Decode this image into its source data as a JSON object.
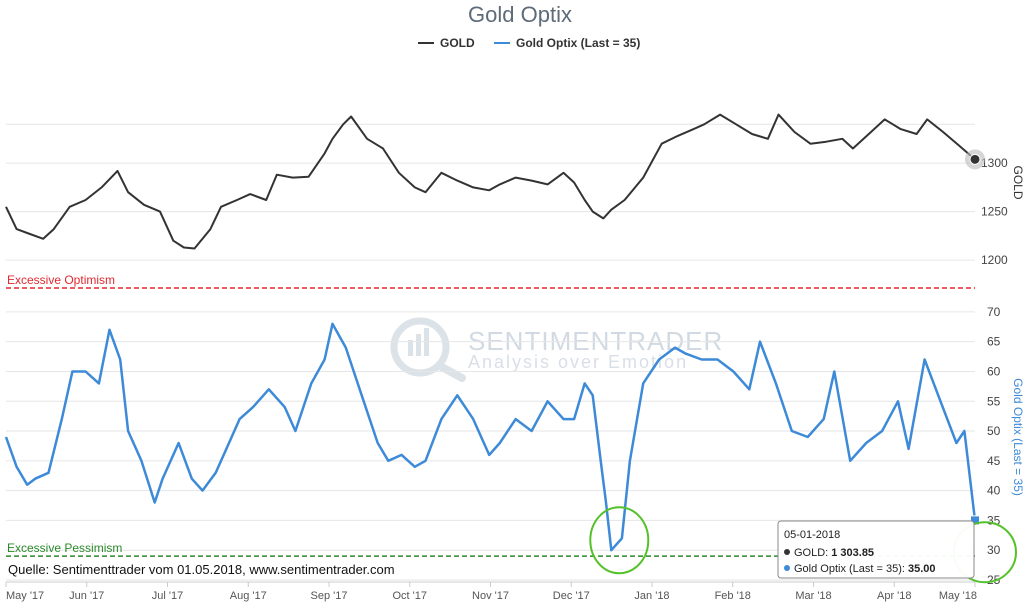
{
  "chart_data": {
    "title": "Gold Optix",
    "x_labels": [
      "May '17",
      "Jun '17",
      "Jul '17",
      "Aug '17",
      "Sep '17",
      "Oct '17",
      "Nov '17",
      "Dec '17",
      "Jan '18",
      "Feb '18",
      "Mar '18",
      "Apr '18",
      "May '18"
    ],
    "legend": [
      {
        "name": "GOLD",
        "color": "#333333"
      },
      {
        "name": "Gold Optix (Last = 35)",
        "color": "#3d8ad8"
      }
    ],
    "panels": [
      {
        "id": "gold",
        "type": "line",
        "ylabel": "GOLD",
        "ylim": [
          1195,
          1365
        ],
        "yticks": [
          1200,
          1250,
          1300
        ],
        "color": "#333333",
        "series": [
          {
            "name": "GOLD",
            "x": [
              "2017-05-01",
              "2017-05-05",
              "2017-05-09",
              "2017-05-15",
              "2017-05-19",
              "2017-05-25",
              "2017-05-31",
              "2017-06-06",
              "2017-06-12",
              "2017-06-16",
              "2017-06-22",
              "2017-06-28",
              "2017-07-03",
              "2017-07-07",
              "2017-07-11",
              "2017-07-17",
              "2017-07-21",
              "2017-07-27",
              "2017-08-01",
              "2017-08-07",
              "2017-08-11",
              "2017-08-17",
              "2017-08-23",
              "2017-08-29",
              "2017-09-01",
              "2017-09-05",
              "2017-09-08",
              "2017-09-14",
              "2017-09-20",
              "2017-09-26",
              "2017-10-02",
              "2017-10-06",
              "2017-10-12",
              "2017-10-18",
              "2017-10-24",
              "2017-10-30",
              "2017-11-03",
              "2017-11-09",
              "2017-11-15",
              "2017-11-21",
              "2017-11-27",
              "2017-12-01",
              "2017-12-05",
              "2017-12-08",
              "2017-12-12",
              "2017-12-15",
              "2017-12-20",
              "2017-12-27",
              "2018-01-03",
              "2018-01-09",
              "2018-01-15",
              "2018-01-19",
              "2018-01-25",
              "2018-01-31",
              "2018-02-06",
              "2018-02-12",
              "2018-02-16",
              "2018-02-22",
              "2018-02-28",
              "2018-03-06",
              "2018-03-12",
              "2018-03-16",
              "2018-03-22",
              "2018-03-28",
              "2018-04-03",
              "2018-04-09",
              "2018-04-13",
              "2018-04-19",
              "2018-04-25",
              "2018-05-01"
            ],
            "y": [
              1255,
              1232,
              1228,
              1222,
              1232,
              1255,
              1262,
              1275,
              1292,
              1270,
              1257,
              1250,
              1220,
              1213,
              1212,
              1232,
              1255,
              1262,
              1268,
              1262,
              1288,
              1285,
              1286,
              1310,
              1325,
              1340,
              1348,
              1325,
              1315,
              1290,
              1275,
              1270,
              1290,
              1282,
              1275,
              1272,
              1278,
              1285,
              1282,
              1278,
              1290,
              1280,
              1262,
              1250,
              1243,
              1252,
              1262,
              1285,
              1320,
              1328,
              1335,
              1340,
              1350,
              1340,
              1330,
              1325,
              1350,
              1332,
              1320,
              1322,
              1325,
              1315,
              1330,
              1345,
              1335,
              1330,
              1345,
              1332,
              1318,
              1303.85
            ]
          }
        ]
      },
      {
        "id": "optix",
        "type": "line",
        "ylabel": "Gold Optix (Last = 35)",
        "ylim": [
          25,
          73
        ],
        "yticks": [
          25,
          30,
          35,
          40,
          45,
          50,
          55,
          60,
          65,
          70
        ],
        "color": "#3d8ad8",
        "series": [
          {
            "name": "Gold Optix (Last = 35)",
            "x": [
              "2017-05-01",
              "2017-05-05",
              "2017-05-09",
              "2017-05-12",
              "2017-05-17",
              "2017-05-22",
              "2017-05-26",
              "2017-05-31",
              "2017-06-05",
              "2017-06-09",
              "2017-06-13",
              "2017-06-16",
              "2017-06-21",
              "2017-06-26",
              "2017-06-29",
              "2017-07-05",
              "2017-07-10",
              "2017-07-14",
              "2017-07-19",
              "2017-07-24",
              "2017-07-28",
              "2017-08-02",
              "2017-08-08",
              "2017-08-14",
              "2017-08-18",
              "2017-08-24",
              "2017-08-29",
              "2017-09-01",
              "2017-09-06",
              "2017-09-12",
              "2017-09-18",
              "2017-09-22",
              "2017-09-27",
              "2017-10-02",
              "2017-10-06",
              "2017-10-12",
              "2017-10-18",
              "2017-10-24",
              "2017-10-30",
              "2017-11-03",
              "2017-11-09",
              "2017-11-15",
              "2017-11-21",
              "2017-11-27",
              "2017-12-01",
              "2017-12-05",
              "2017-12-08",
              "2017-12-11",
              "2017-12-13",
              "2017-12-15",
              "2017-12-19",
              "2017-12-22",
              "2017-12-27",
              "2018-01-02",
              "2018-01-08",
              "2018-01-12",
              "2018-01-18",
              "2018-01-24",
              "2018-01-30",
              "2018-02-05",
              "2018-02-09",
              "2018-02-15",
              "2018-02-21",
              "2018-02-27",
              "2018-03-05",
              "2018-03-09",
              "2018-03-15",
              "2018-03-21",
              "2018-03-27",
              "2018-04-02",
              "2018-04-06",
              "2018-04-12",
              "2018-04-18",
              "2018-04-24",
              "2018-04-27",
              "2018-05-01"
            ],
            "y": [
              49,
              44,
              41,
              42,
              43,
              52,
              60,
              60,
              58,
              67,
              62,
              50,
              45,
              38,
              42,
              48,
              42,
              40,
              43,
              48,
              52,
              54,
              57,
              54,
              50,
              58,
              62,
              68,
              64,
              56,
              48,
              45,
              46,
              44,
              45,
              52,
              56,
              52,
              46,
              48,
              52,
              50,
              55,
              52,
              52,
              58,
              56,
              45,
              38,
              30,
              32,
              45,
              58,
              62,
              64,
              63,
              62,
              62,
              60,
              57,
              65,
              58,
              50,
              49,
              52,
              60,
              45,
              48,
              50,
              55,
              47,
              62,
              55,
              48,
              50,
              35
            ]
          }
        ]
      }
    ],
    "bands": [
      {
        "label": "Excessive Optimism",
        "value": 74,
        "color": "#e0292f"
      },
      {
        "label": "Excessive Pessimism",
        "value": 29,
        "color": "#2a8a2a"
      }
    ],
    "tooltip": {
      "date": "05-01-2018",
      "gold_label": "GOLD:",
      "gold_value": "1 303.85",
      "optix_label": "Gold Optix (Last = 35):",
      "optix_value": "35.00"
    },
    "annotation": "Quelle: Sentimenttrader vom 01.05.2018, www.sentimentrader.com",
    "watermark": {
      "line1": "SENTIMENTRADER",
      "line2": "Analysis over Emotion"
    }
  }
}
